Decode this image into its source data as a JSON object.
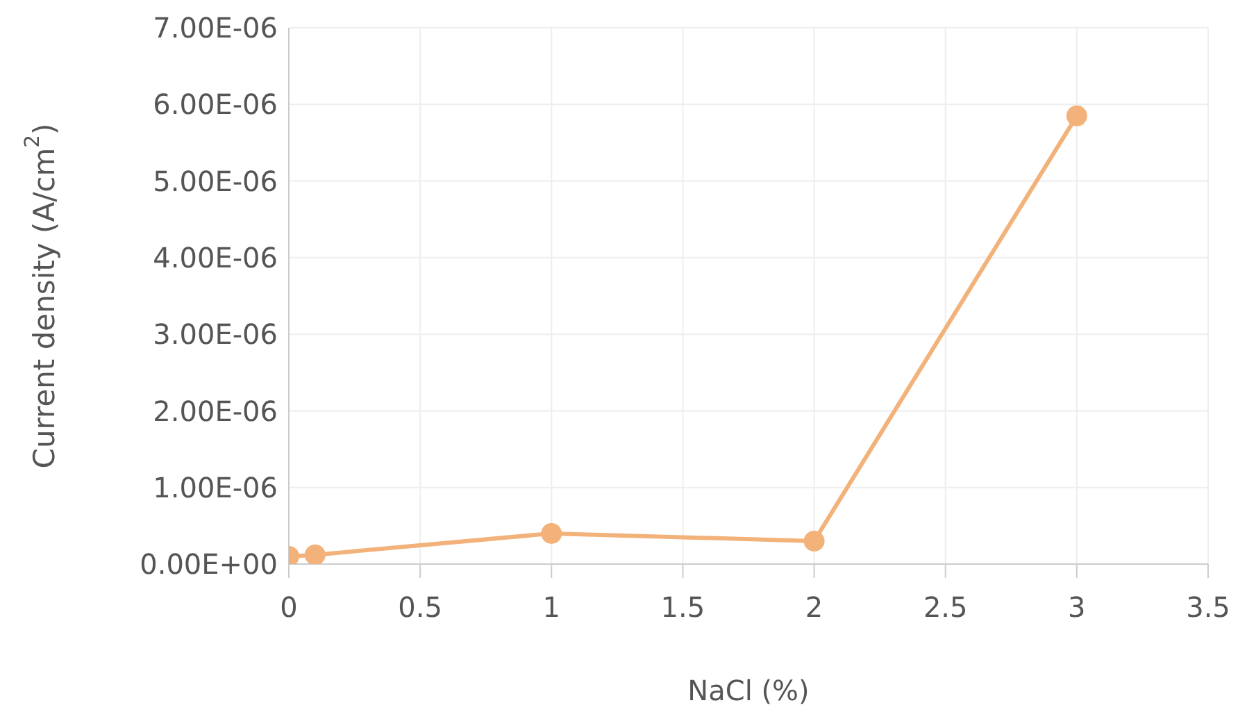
{
  "chart_data": {
    "type": "line",
    "xlabel": "NaCl (%)",
    "ylabel": "Current density (A/cm$^{2}$)",
    "x": [
      0,
      0.1,
      1,
      2,
      3
    ],
    "series": [
      {
        "color": "#f2b27a",
        "values": [
          1e-07,
          1.2e-07,
          4e-07,
          3e-07,
          5.85e-06
        ]
      }
    ],
    "xlim": [
      0,
      3.5
    ],
    "xticks": [
      0,
      0.5,
      1,
      1.5,
      2,
      2.5,
      3,
      3.5
    ],
    "ylim": [
      0,
      7e-06
    ],
    "yticks": [
      {
        "value": 0,
        "label": "0.00E+00"
      },
      {
        "value": 1e-06,
        "label": "1.00E-06"
      },
      {
        "value": 2e-06,
        "label": "2.00E-06"
      },
      {
        "value": 3e-06,
        "label": "3.00E-06"
      },
      {
        "value": 4e-06,
        "label": "4.00E-06"
      },
      {
        "value": 5e-06,
        "label": "5.00E-06"
      },
      {
        "value": 6e-06,
        "label": "6.00E-06"
      },
      {
        "value": 7e-06,
        "label": "7.00E-06"
      }
    ],
    "grid": true,
    "marker": "circle",
    "line_style": "solid"
  }
}
